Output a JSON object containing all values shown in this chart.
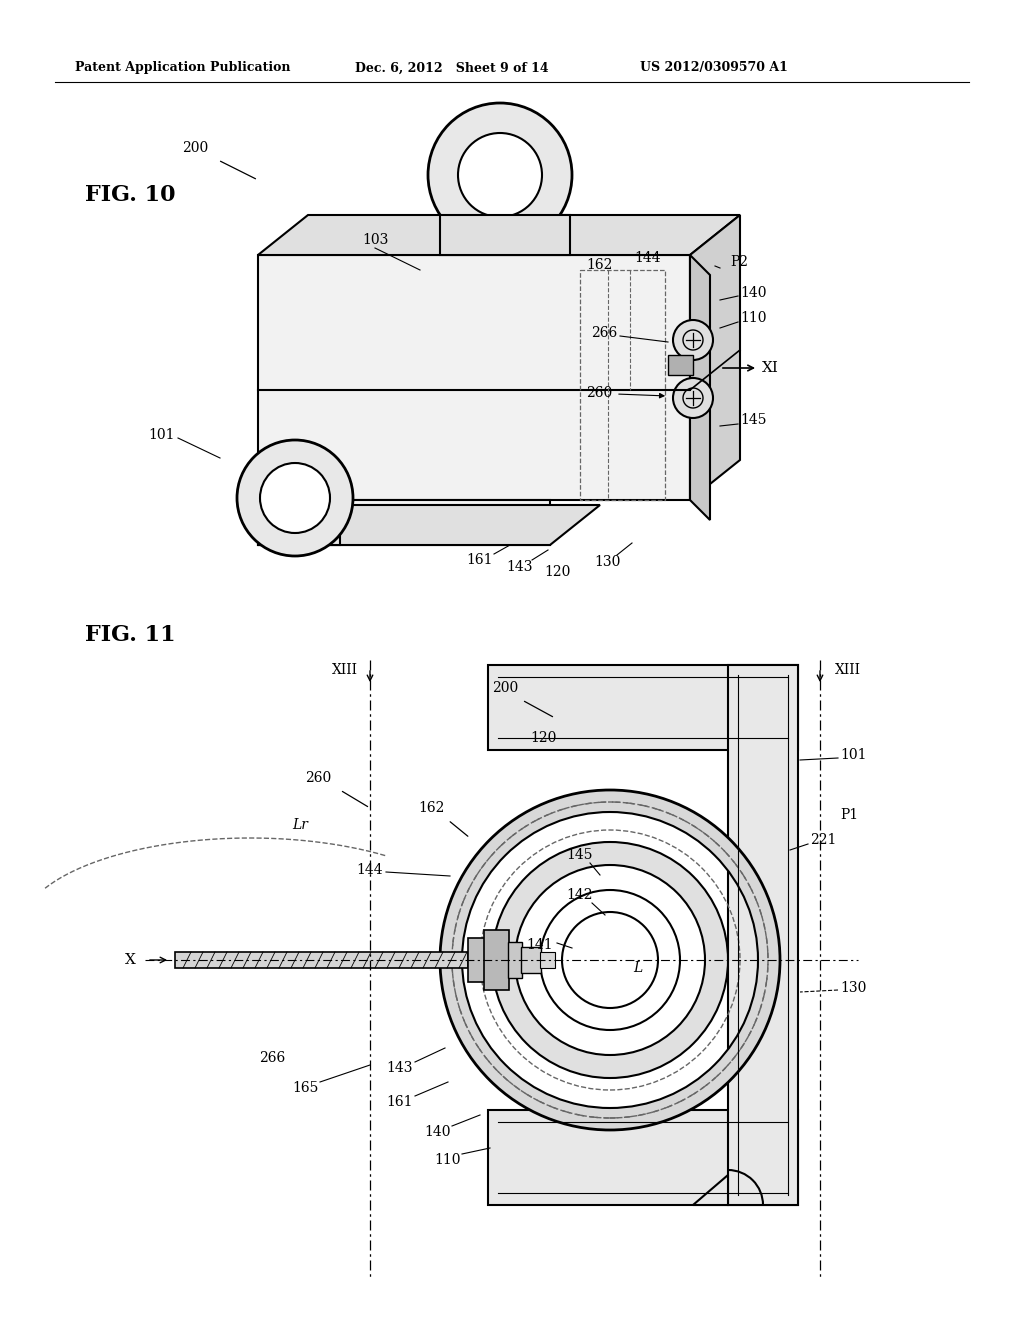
{
  "header_left": "Patent Application Publication",
  "header_mid": "Dec. 6, 2012   Sheet 9 of 14",
  "header_right": "US 2012/0309570 A1",
  "fig10_label": "FIG. 10",
  "fig11_label": "FIG. 11",
  "bg_color": "#ffffff",
  "line_color": "#000000",
  "dashed_color": "#666666"
}
